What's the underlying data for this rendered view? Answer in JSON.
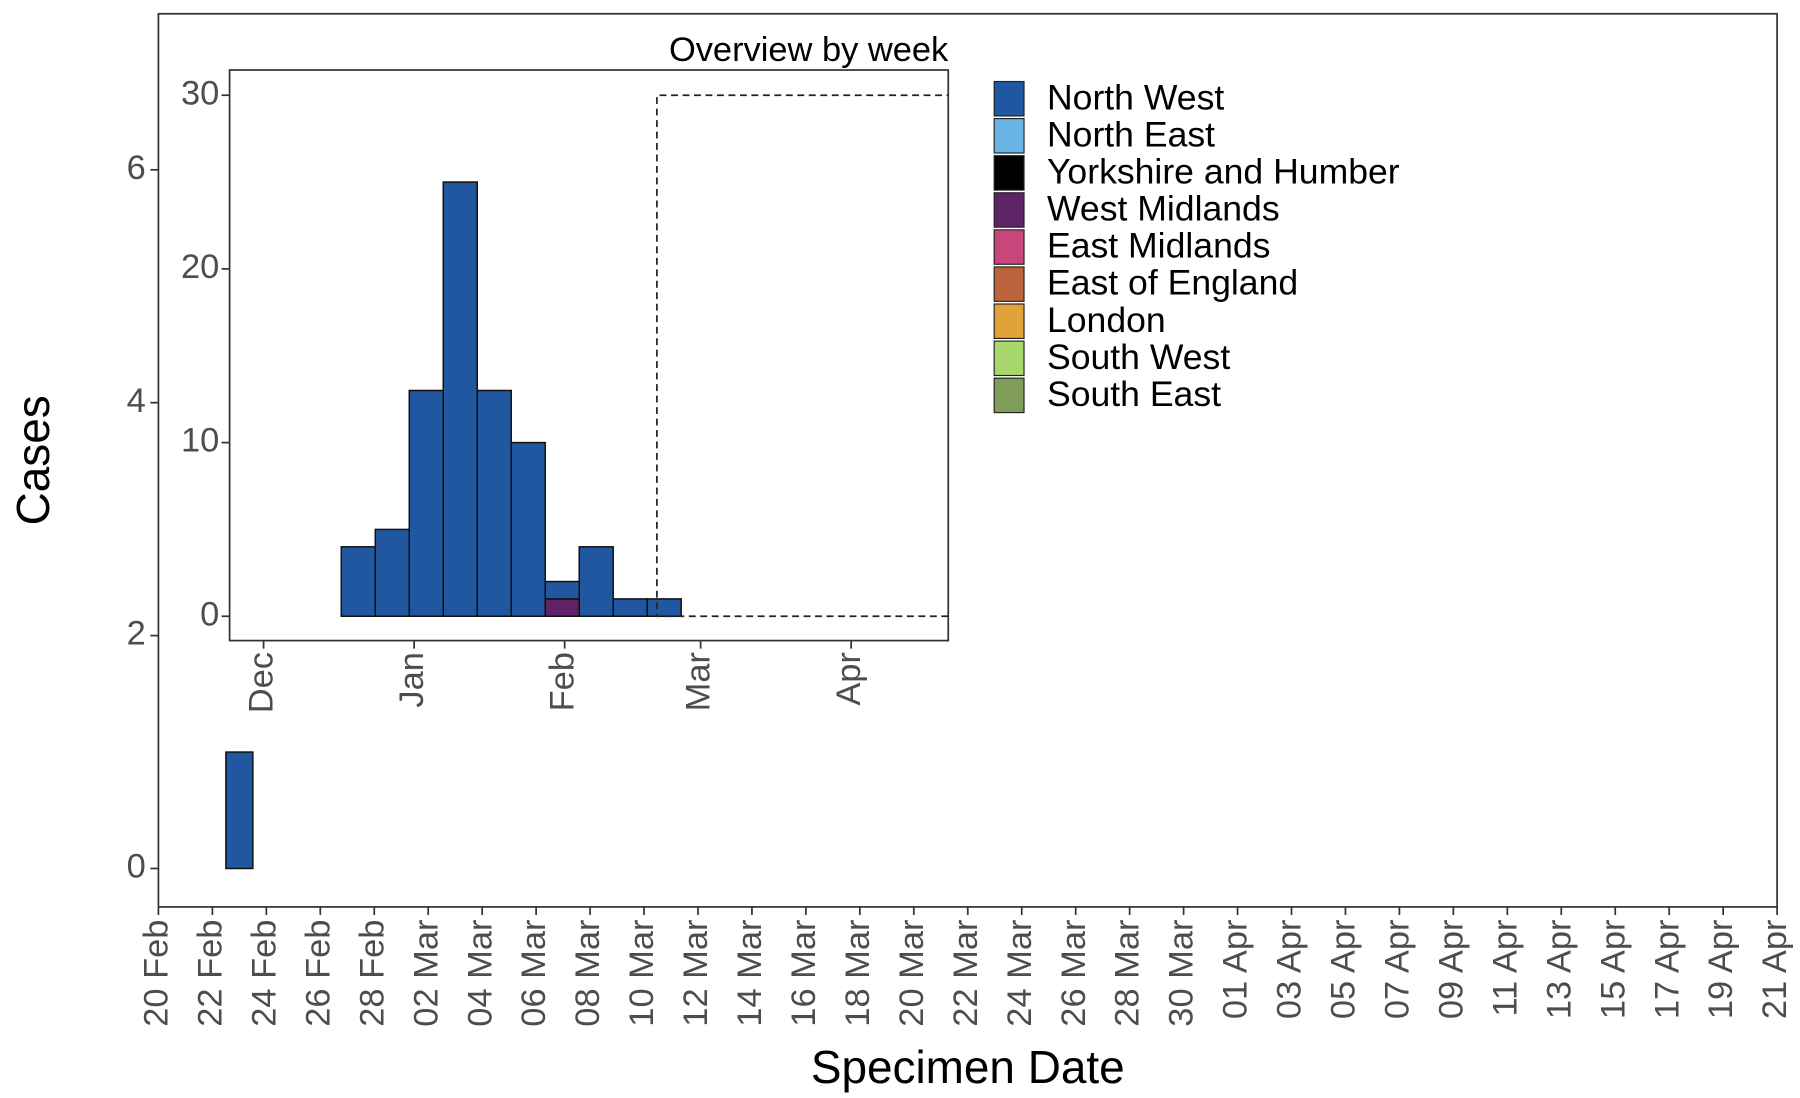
{
  "chart_data": [
    {
      "type": "bar",
      "ylabel": "Cases",
      "xlabel": "Specimen Date",
      "x": [
        "23 Feb"
      ],
      "series": [
        {
          "name": "North West",
          "color": "#2156a0",
          "values": [
            1
          ]
        },
        {
          "name": "North East",
          "color": "#6ab4e6",
          "values": [
            0
          ]
        },
        {
          "name": "Yorkshire and Humber",
          "color": "#000000",
          "values": [
            0
          ]
        },
        {
          "name": "West Midlands",
          "color": "#5e2467",
          "values": [
            0
          ]
        },
        {
          "name": "East Midlands",
          "color": "#c9467a",
          "values": [
            0
          ]
        },
        {
          "name": "East of England",
          "color": "#b9643a",
          "values": [
            0
          ]
        },
        {
          "name": "London",
          "color": "#e0a33a",
          "values": [
            0
          ]
        },
        {
          "name": "South West",
          "color": "#a8d86d",
          "values": [
            0
          ]
        },
        {
          "name": "South East",
          "color": "#7f9c58",
          "values": [
            0
          ]
        }
      ],
      "xlim": [
        "20 Feb",
        "21 Apr"
      ],
      "xticks": [
        "20 Feb",
        "22 Feb",
        "24 Feb",
        "26 Feb",
        "28 Feb",
        "02 Mar",
        "04 Mar",
        "06 Mar",
        "08 Mar",
        "10 Mar",
        "12 Mar",
        "14 Mar",
        "16 Mar",
        "18 Mar",
        "20 Mar",
        "22 Mar",
        "24 Mar",
        "26 Mar",
        "28 Mar",
        "30 Mar",
        "01 Apr",
        "03 Apr",
        "05 Apr",
        "07 Apr",
        "09 Apr",
        "11 Apr",
        "13 Apr",
        "15 Apr",
        "17 Apr",
        "19 Apr",
        "21 Apr"
      ],
      "ylim": [
        -0.33,
        7.34
      ],
      "yticks": [
        0,
        2,
        4,
        6
      ]
    },
    {
      "type": "histogram",
      "title": "Overview by week",
      "bins": [
        16,
        23,
        30,
        37,
        44,
        51,
        58,
        65,
        72,
        79,
        86
      ],
      "series": [
        {
          "values": [
            4,
            5,
            13,
            25,
            13,
            10,
            1,
            4,
            1,
            1
          ]
        },
        {
          "values": [
            0,
            0,
            0,
            0,
            0,
            0,
            0,
            0,
            0,
            0
          ]
        },
        {
          "values": [
            0,
            0,
            0,
            0,
            0,
            0,
            0,
            0,
            0,
            0
          ]
        },
        {
          "values": [
            0,
            0,
            0,
            0,
            0,
            0,
            1,
            0,
            0,
            0
          ]
        },
        {
          "values": [
            0,
            0,
            0,
            0,
            0,
            0,
            0,
            0,
            0,
            0
          ]
        },
        {
          "values": [
            0,
            0,
            0,
            0,
            0,
            0,
            0,
            0,
            0,
            0
          ]
        },
        {
          "values": [
            0,
            0,
            0,
            0,
            0,
            0,
            0,
            0,
            0,
            0
          ]
        },
        {
          "values": [
            0,
            0,
            0,
            0,
            0,
            0,
            0,
            0,
            0,
            0
          ]
        },
        {
          "values": [
            0,
            0,
            0,
            0,
            0,
            0,
            0,
            0,
            0,
            0
          ]
        }
      ],
      "xlim": [
        -7,
        141
      ],
      "xticks": [
        {
          "value": 0,
          "label": "Dec"
        },
        {
          "value": 31,
          "label": "Jan"
        },
        {
          "value": 62,
          "label": "Feb"
        },
        {
          "value": 90,
          "label": "Mar"
        },
        {
          "value": 121,
          "label": "Apr"
        }
      ],
      "ylim": [
        -1.4,
        31.45
      ],
      "yticks": [
        0,
        10,
        20,
        30
      ],
      "zoom_box": {
        "x": [
          81,
          141
        ],
        "y": [
          0,
          30
        ]
      }
    }
  ]
}
